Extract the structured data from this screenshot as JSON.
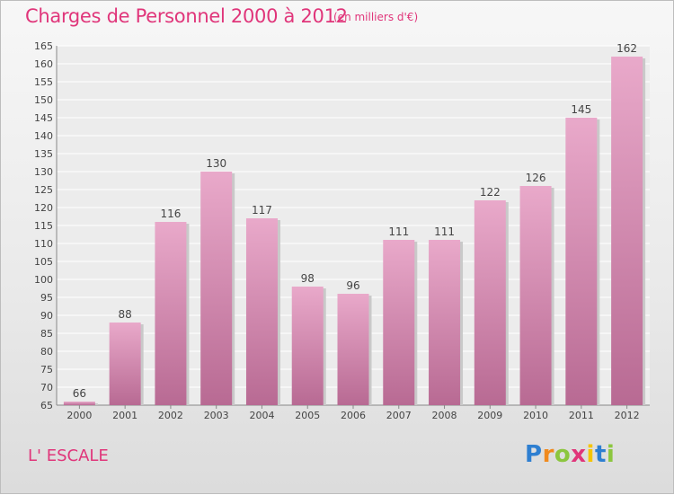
{
  "header": {
    "title": "Charges de Personnel 2000 à 2012",
    "subtitle": "(en milliers d'€)"
  },
  "footer": {
    "commune": "L' ESCALE",
    "brand": {
      "letters": [
        "P",
        "r",
        "o",
        "x",
        "i",
        "t",
        "i"
      ],
      "colors": [
        "#2e7fd1",
        "#f08a1e",
        "#8cc63f",
        "#e0357a",
        "#f5c400",
        "#2e7fd1",
        "#8cc63f"
      ]
    }
  },
  "colors": {
    "bar": "#d985b0",
    "bar_light": "#e9a9ca",
    "bar_dark": "#b86a93",
    "title": "#e0357a"
  },
  "chart_data": {
    "type": "bar",
    "categories": [
      "2000",
      "2001",
      "2002",
      "2003",
      "2004",
      "2005",
      "2006",
      "2007",
      "2008",
      "2009",
      "2010",
      "2011",
      "2012"
    ],
    "values": [
      66,
      88,
      116,
      130,
      117,
      98,
      96,
      111,
      111,
      122,
      126,
      145,
      162
    ],
    "ylim": [
      65,
      165
    ],
    "yticks": [
      65,
      70,
      75,
      80,
      85,
      90,
      95,
      100,
      105,
      110,
      115,
      120,
      125,
      130,
      135,
      140,
      145,
      150,
      155,
      160,
      165
    ],
    "grid": true
  }
}
